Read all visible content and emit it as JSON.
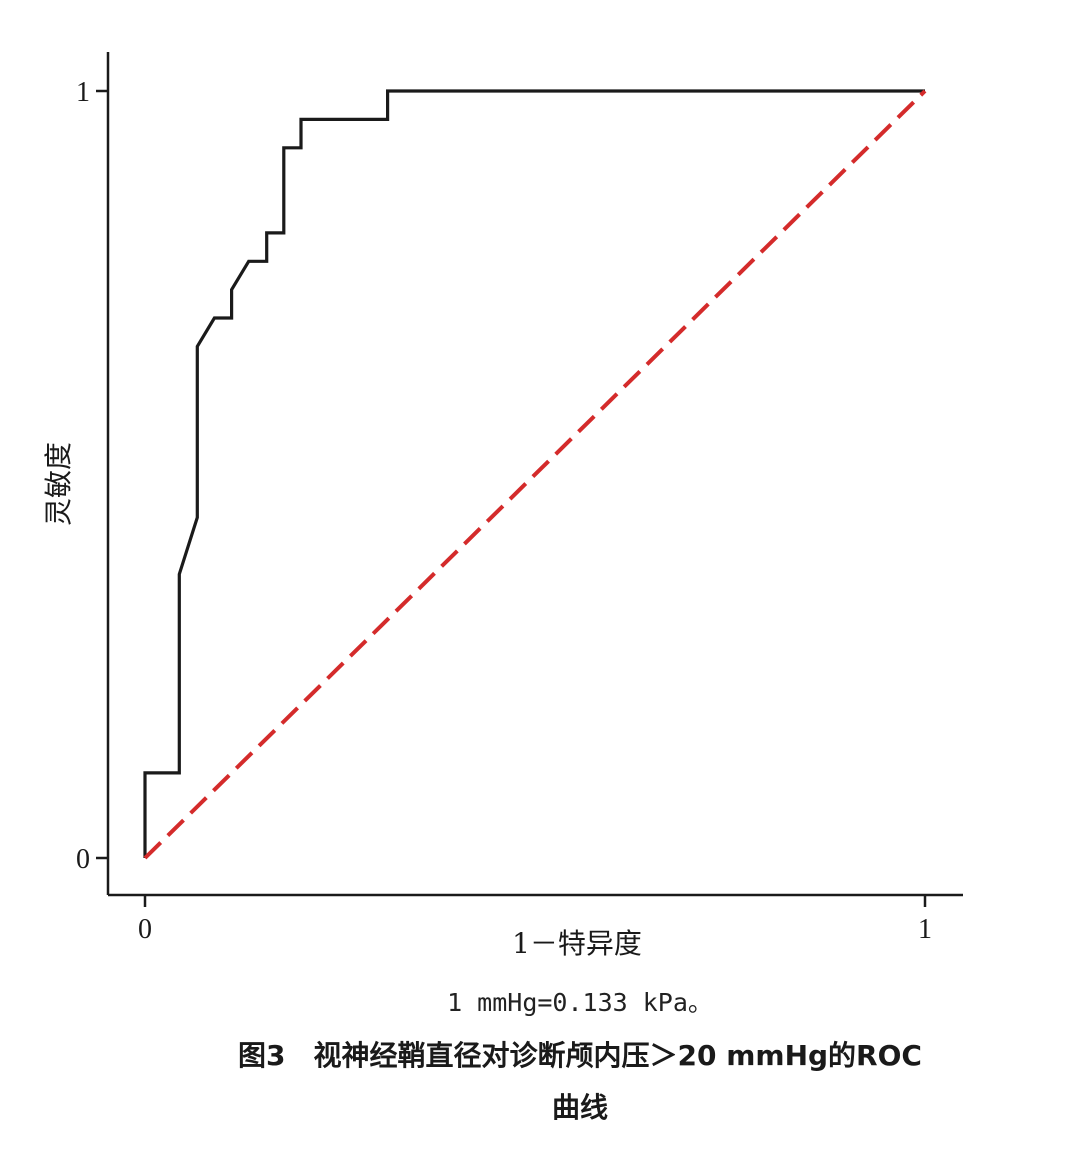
{
  "chart_data": {
    "type": "line",
    "title": "",
    "xlabel": "1－特异度",
    "ylabel": "灵敏度",
    "xlim": [
      0,
      1
    ],
    "ylim": [
      0,
      1
    ],
    "x_ticks": [
      "0",
      "1"
    ],
    "y_ticks": [
      "0",
      "1"
    ],
    "grid": false,
    "series": [
      {
        "style": "solid",
        "color": "#1a1a1a",
        "points": [
          [
            0,
            0
          ],
          [
            0,
            0.111
          ],
          [
            0.044,
            0.111
          ],
          [
            0.044,
            0.37
          ],
          [
            0.067,
            0.444
          ],
          [
            0.067,
            0.667
          ],
          [
            0.089,
            0.704
          ],
          [
            0.111,
            0.704
          ],
          [
            0.111,
            0.741
          ],
          [
            0.133,
            0.778
          ],
          [
            0.156,
            0.778
          ],
          [
            0.156,
            0.815
          ],
          [
            0.178,
            0.815
          ],
          [
            0.178,
            0.926
          ],
          [
            0.2,
            0.926
          ],
          [
            0.2,
            0.963
          ],
          [
            0.311,
            0.963
          ],
          [
            0.311,
            1
          ],
          [
            1,
            1
          ]
        ]
      },
      {
        "style": "dashed",
        "color": "#d42b2b",
        "points": [
          [
            0,
            0
          ],
          [
            1,
            1
          ]
        ]
      }
    ]
  },
  "note": "1 mmHg=0.133 kPa。",
  "caption": {
    "line1": "图3　视神经鞘直径对诊断颅内压＞20 mmHg的ROC",
    "line2": "曲线"
  }
}
